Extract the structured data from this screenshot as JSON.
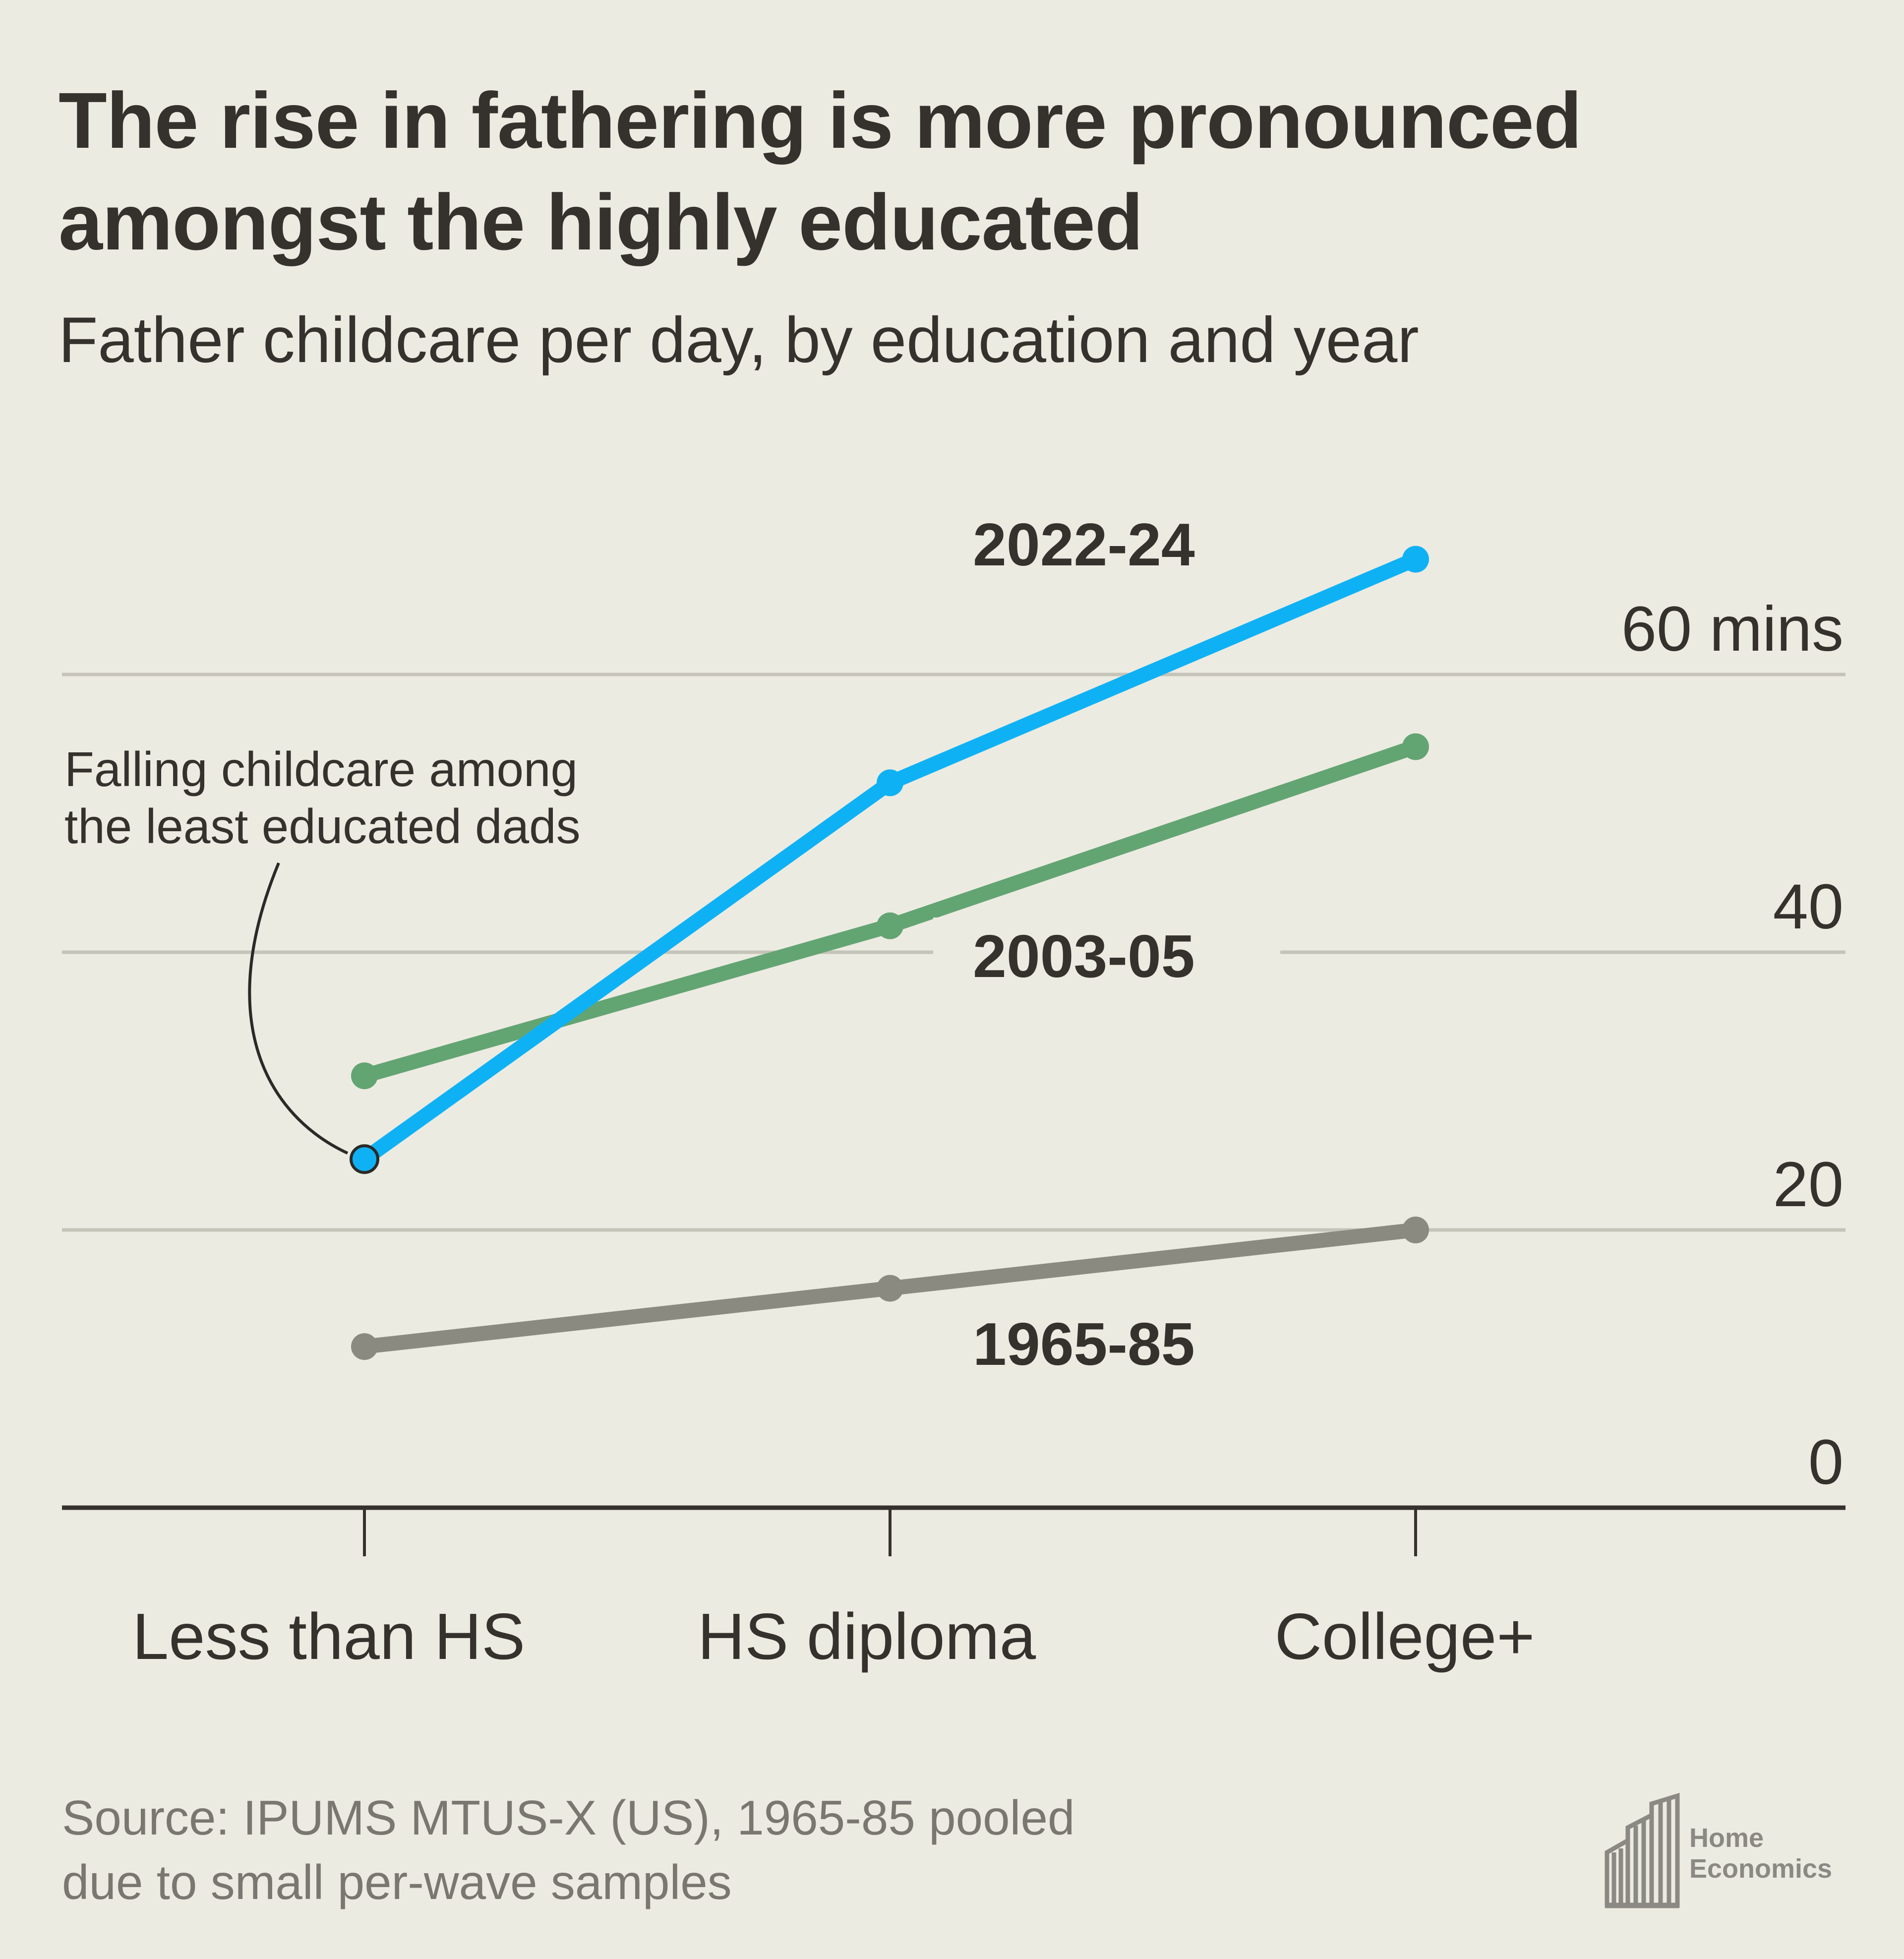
{
  "title_line1": "The rise in fathering is more pronounced",
  "title_line2": "amongst the highly educated",
  "subtitle": "Father childcare per day, by education and year",
  "source_line1": "Source: IPUMS MTUS-X (US), 1965-85 pooled",
  "source_line2": "due to small per-wave samples",
  "logo": {
    "line1": "Home",
    "line2": "Economics"
  },
  "chart_data": {
    "type": "line",
    "categories": [
      "Less than HS",
      "HS diploma",
      "College+"
    ],
    "series": [
      {
        "name": "1965-85",
        "values": [
          11.6,
          15.8,
          20.0
        ],
        "color": "#8a8a80"
      },
      {
        "name": "2003-05",
        "values": [
          31.1,
          41.9,
          54.8
        ],
        "color": "#63a473"
      },
      {
        "name": "2022-24",
        "values": [
          25.1,
          52.2,
          68.3
        ],
        "color": "#0fb1f5"
      }
    ],
    "y_ticks": [
      {
        "value": 0,
        "label": "0"
      },
      {
        "value": 20,
        "label": "20"
      },
      {
        "value": 40,
        "label": "40"
      },
      {
        "value": 60,
        "label": "60 mins"
      }
    ],
    "ylim": [
      0,
      70
    ],
    "grid": true,
    "annotation": {
      "line1": "Falling childcare among",
      "line2": "the least educated dads",
      "target": {
        "series": "2022-24",
        "category": "Less than HS"
      }
    }
  }
}
